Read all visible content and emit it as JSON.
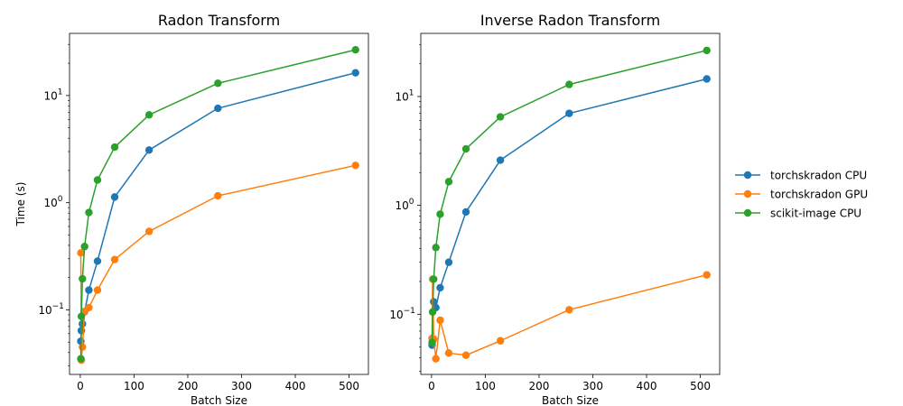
{
  "chart_data": [
    {
      "type": "line",
      "title": "Radon Transform",
      "xlabel": "Batch Size",
      "ylabel": "Time (s)",
      "yscale": "log",
      "xlim": [
        -20,
        536
      ],
      "ylim": [
        0.025,
        38
      ],
      "x_ticks": [
        0,
        100,
        200,
        300,
        400,
        500
      ],
      "x_tick_labels": [
        "0",
        "100",
        "200",
        "300",
        "400",
        "500"
      ],
      "y_ticks": [
        0.1,
        1,
        10
      ],
      "y_tick_labels": [
        "10",
        "10",
        "10"
      ],
      "y_tick_exponents": [
        "−1",
        "0",
        "1"
      ],
      "x": [
        1,
        2,
        4,
        8,
        16,
        32,
        64,
        128,
        256,
        512
      ],
      "series": [
        {
          "name": "torchskradon CPU",
          "color": "#1f77b4",
          "values": [
            0.051,
            0.064,
            0.074,
            0.096,
            0.153,
            0.285,
            1.13,
            3.1,
            7.6,
            16.3
          ]
        },
        {
          "name": "torchskradon GPU",
          "color": "#ff7f0e",
          "values": [
            0.34,
            0.034,
            0.045,
            0.097,
            0.105,
            0.153,
            0.295,
            0.54,
            1.16,
            2.23
          ]
        },
        {
          "name": "scikit-image CPU",
          "color": "#2ca02c",
          "values": [
            0.035,
            0.087,
            0.195,
            0.39,
            0.81,
            1.63,
            3.3,
            6.6,
            13.0,
            26.7
          ]
        }
      ]
    },
    {
      "type": "line",
      "title": "Inverse Radon Transform",
      "xlabel": "Batch Size",
      "ylabel": "",
      "yscale": "log",
      "xlim": [
        -20,
        536
      ],
      "ylim": [
        0.028,
        38
      ],
      "x_ticks": [
        0,
        100,
        200,
        300,
        400,
        500
      ],
      "x_tick_labels": [
        "0",
        "100",
        "200",
        "300",
        "400",
        "500"
      ],
      "y_ticks": [
        0.1,
        1,
        10
      ],
      "y_tick_labels": [
        "10",
        "10",
        "10"
      ],
      "y_tick_exponents": [
        "−1",
        "0",
        "1"
      ],
      "x": [
        1,
        2,
        4,
        8,
        16,
        32,
        64,
        128,
        256,
        512
      ],
      "series": [
        {
          "name": "torchskradon CPU",
          "color": "#1f77b4",
          "values": [
            0.052,
            0.059,
            0.13,
            0.115,
            0.175,
            0.3,
            0.87,
            2.6,
            7.0,
            14.5
          ]
        },
        {
          "name": "torchskradon GPU",
          "color": "#ff7f0e",
          "values": [
            0.06,
            0.21,
            0.059,
            0.039,
            0.088,
            0.044,
            0.042,
            0.057,
            0.11,
            0.23
          ]
        },
        {
          "name": "scikit-image CPU",
          "color": "#2ca02c",
          "values": [
            0.055,
            0.105,
            0.21,
            0.41,
            0.83,
            1.65,
            3.3,
            6.5,
            12.9,
            26.5
          ]
        }
      ]
    }
  ],
  "legend": {
    "placement": "right",
    "entries": [
      {
        "label": "torchskradon CPU",
        "color": "#1f77b4"
      },
      {
        "label": "torchskradon GPU",
        "color": "#ff7f0e"
      },
      {
        "label": "scikit-image CPU",
        "color": "#2ca02c"
      }
    ]
  }
}
